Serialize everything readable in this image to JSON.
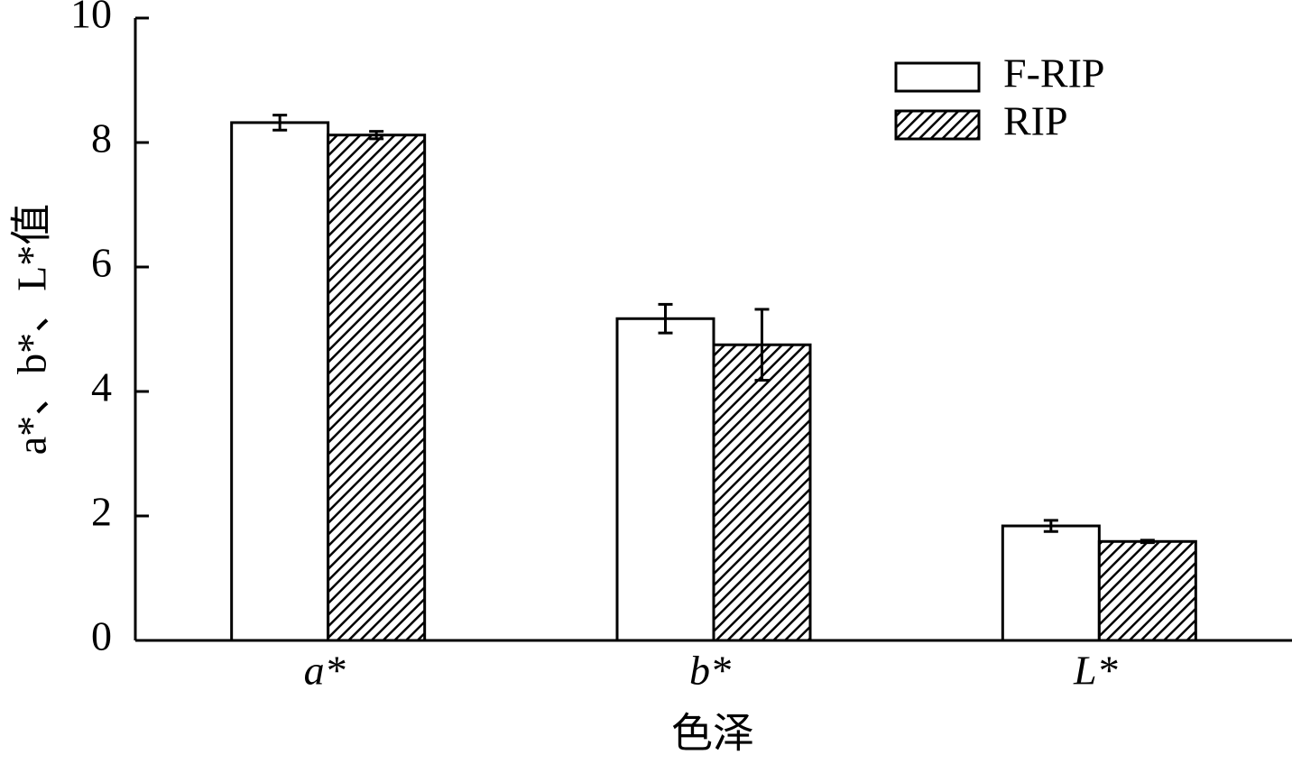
{
  "chart_data": {
    "type": "bar",
    "x_label": "色泽",
    "y_label": "a*、b*、L*值",
    "categories": [
      "a*",
      "b*",
      "L*"
    ],
    "series": [
      {
        "name": "F-RIP",
        "color": "#ffffff",
        "hatch": false,
        "values": [
          8.32,
          5.17,
          1.84
        ],
        "errors": [
          0.12,
          0.23,
          0.09
        ]
      },
      {
        "name": "RIP",
        "color": "#000000",
        "hatch": true,
        "values": [
          8.12,
          4.75,
          1.59
        ],
        "errors": [
          0.06,
          0.57,
          0.02
        ]
      }
    ],
    "ylim": [
      0,
      10
    ],
    "yticks": [
      0,
      2,
      4,
      6,
      8,
      10
    ],
    "grid": false,
    "legend": "upper right"
  }
}
